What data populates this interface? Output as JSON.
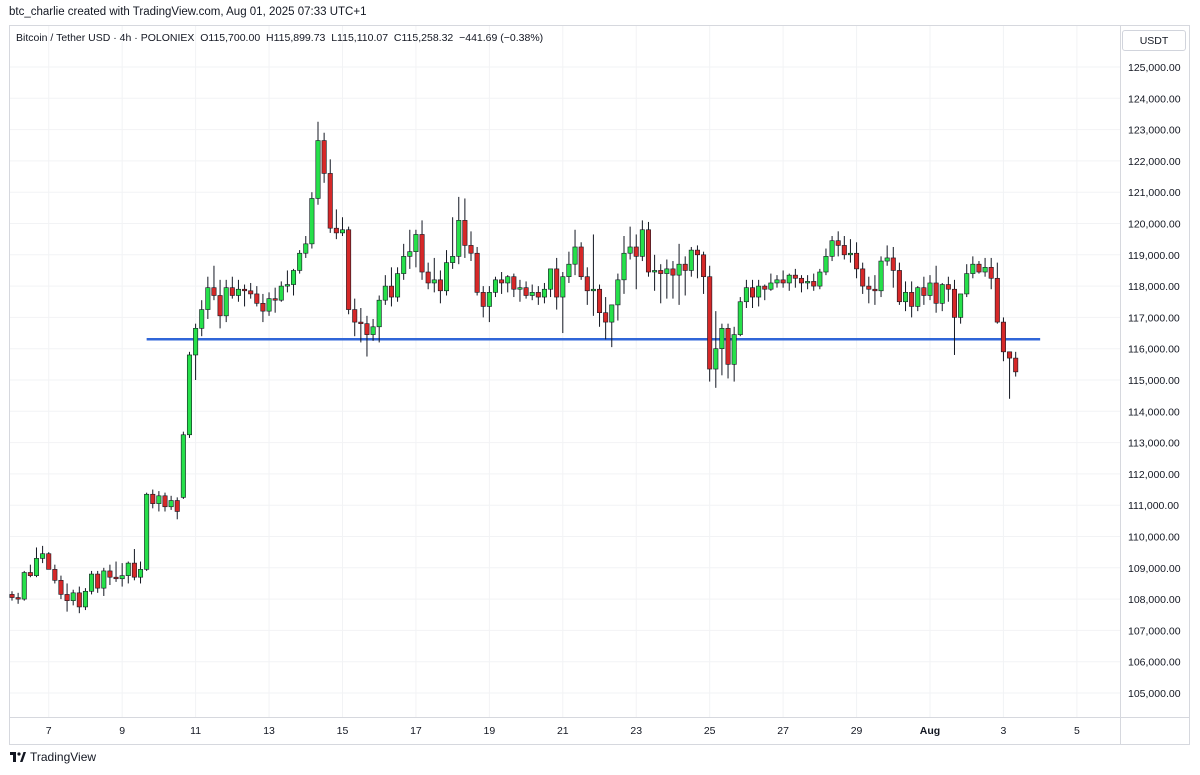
{
  "header": {
    "text": "btc_charlie created with TradingView.com, Aug 01, 2025 07:33 UTC+1"
  },
  "symbol": {
    "name": "Bitcoin / Tether USD · 4h · POLONIEX",
    "open": "O115,700.00",
    "high": "H115,899.73",
    "low": "L115,110.07",
    "close": "C115,258.32",
    "change": "−441.69 (−0.38%)"
  },
  "currency": "USDT",
  "footer": {
    "brand": "TradingView"
  },
  "colors": {
    "up": "#26e04a",
    "down": "#d62828",
    "line": "#3066d8",
    "grid": "#f2f3f5"
  },
  "chart_data": {
    "type": "candlestick",
    "interval": "4h",
    "ylim": [
      104000,
      126000
    ],
    "y_ticks": [
      105000,
      106000,
      107000,
      108000,
      109000,
      110000,
      111000,
      112000,
      113000,
      114000,
      115000,
      116000,
      117000,
      118000,
      119000,
      120000,
      121000,
      122000,
      123000,
      124000,
      125000
    ],
    "y_tick_labels": [
      "105,000.00",
      "106,000.00",
      "107,000.00",
      "108,000.00",
      "109,000.00",
      "110,000.00",
      "111,000.00",
      "112,000.00",
      "113,000.00",
      "114,000.00",
      "115,000.00",
      "116,000.00",
      "117,000.00",
      "118,000.00",
      "119,000.00",
      "120,000.00",
      "121,000.00",
      "122,000.00",
      "123,000.00",
      "124,000.00",
      "125,000.00"
    ],
    "x_ticks": [
      {
        "pos": 6,
        "label": "7"
      },
      {
        "pos": 18,
        "label": "9"
      },
      {
        "pos": 30,
        "label": "11"
      },
      {
        "pos": 42,
        "label": "13"
      },
      {
        "pos": 54,
        "label": "15"
      },
      {
        "pos": 66,
        "label": "17"
      },
      {
        "pos": 78,
        "label": "19"
      },
      {
        "pos": 90,
        "label": "21"
      },
      {
        "pos": 102,
        "label": "23"
      },
      {
        "pos": 114,
        "label": "25"
      },
      {
        "pos": 126,
        "label": "27"
      },
      {
        "pos": 138,
        "label": "29"
      },
      {
        "pos": 150,
        "label": "Aug"
      },
      {
        "pos": 162,
        "label": "3"
      },
      {
        "pos": 174,
        "label": "5"
      }
    ],
    "horizontal_line": {
      "value": 116300,
      "from": 22,
      "to": 168
    },
    "candles": [
      {
        "o": 108150,
        "h": 108250,
        "l": 107950,
        "c": 108050
      },
      {
        "o": 108050,
        "h": 108200,
        "l": 107850,
        "c": 108000
      },
      {
        "o": 108000,
        "h": 108900,
        "l": 107950,
        "c": 108850
      },
      {
        "o": 108850,
        "h": 109100,
        "l": 108700,
        "c": 108750
      },
      {
        "o": 108750,
        "h": 109650,
        "l": 108700,
        "c": 109300
      },
      {
        "o": 109300,
        "h": 109700,
        "l": 109150,
        "c": 109450
      },
      {
        "o": 109450,
        "h": 109500,
        "l": 108950,
        "c": 108950
      },
      {
        "o": 108950,
        "h": 109100,
        "l": 108500,
        "c": 108600
      },
      {
        "o": 108600,
        "h": 108750,
        "l": 108000,
        "c": 108150
      },
      {
        "o": 108150,
        "h": 108500,
        "l": 107600,
        "c": 107950
      },
      {
        "o": 107950,
        "h": 108300,
        "l": 107800,
        "c": 108200
      },
      {
        "o": 108200,
        "h": 108400,
        "l": 107550,
        "c": 107750
      },
      {
        "o": 107750,
        "h": 108350,
        "l": 107650,
        "c": 108250
      },
      {
        "o": 108250,
        "h": 108900,
        "l": 108150,
        "c": 108800
      },
      {
        "o": 108800,
        "h": 108900,
        "l": 108200,
        "c": 108350
      },
      {
        "o": 108350,
        "h": 109000,
        "l": 108100,
        "c": 108900
      },
      {
        "o": 108900,
        "h": 109100,
        "l": 108450,
        "c": 108700
      },
      {
        "o": 108700,
        "h": 109200,
        "l": 108550,
        "c": 108650
      },
      {
        "o": 108650,
        "h": 109150,
        "l": 108400,
        "c": 108750
      },
      {
        "o": 108750,
        "h": 109200,
        "l": 108500,
        "c": 109150
      },
      {
        "o": 109150,
        "h": 109600,
        "l": 108600,
        "c": 108700
      },
      {
        "o": 108700,
        "h": 109200,
        "l": 108500,
        "c": 108950
      },
      {
        "o": 108950,
        "h": 111400,
        "l": 108900,
        "c": 111350
      },
      {
        "o": 111350,
        "h": 111500,
        "l": 110900,
        "c": 111050
      },
      {
        "o": 111050,
        "h": 111450,
        "l": 110800,
        "c": 111300
      },
      {
        "o": 111300,
        "h": 111400,
        "l": 110800,
        "c": 110950
      },
      {
        "o": 110950,
        "h": 111300,
        "l": 110850,
        "c": 111150
      },
      {
        "o": 111150,
        "h": 111250,
        "l": 110550,
        "c": 110800
      },
      {
        "o": 111250,
        "h": 113350,
        "l": 111200,
        "c": 113250
      },
      {
        "o": 113250,
        "h": 115900,
        "l": 113150,
        "c": 115800
      },
      {
        "o": 115800,
        "h": 116800,
        "l": 115000,
        "c": 116650
      },
      {
        "o": 116650,
        "h": 117550,
        "l": 116400,
        "c": 117250
      },
      {
        "o": 117250,
        "h": 118300,
        "l": 116950,
        "c": 117950
      },
      {
        "o": 117950,
        "h": 118650,
        "l": 117550,
        "c": 117700
      },
      {
        "o": 117700,
        "h": 118200,
        "l": 116650,
        "c": 117050
      },
      {
        "o": 117050,
        "h": 118200,
        "l": 116850,
        "c": 117950
      },
      {
        "o": 117950,
        "h": 118300,
        "l": 117600,
        "c": 117700
      },
      {
        "o": 117700,
        "h": 118200,
        "l": 117500,
        "c": 117900
      },
      {
        "o": 117900,
        "h": 118050,
        "l": 117350,
        "c": 117850
      },
      {
        "o": 117850,
        "h": 118100,
        "l": 117600,
        "c": 117750
      },
      {
        "o": 117750,
        "h": 118000,
        "l": 117350,
        "c": 117450
      },
      {
        "o": 117450,
        "h": 117750,
        "l": 116850,
        "c": 117200
      },
      {
        "o": 117200,
        "h": 117800,
        "l": 117050,
        "c": 117600
      },
      {
        "o": 117600,
        "h": 117950,
        "l": 117150,
        "c": 117550
      },
      {
        "o": 117550,
        "h": 118150,
        "l": 117500,
        "c": 118000
      },
      {
        "o": 118000,
        "h": 118500,
        "l": 117800,
        "c": 118050
      },
      {
        "o": 118050,
        "h": 118550,
        "l": 117700,
        "c": 118500
      },
      {
        "o": 118500,
        "h": 119150,
        "l": 118400,
        "c": 119050
      },
      {
        "o": 119050,
        "h": 119600,
        "l": 118900,
        "c": 119350
      },
      {
        "o": 119350,
        "h": 121000,
        "l": 119200,
        "c": 120800
      },
      {
        "o": 120800,
        "h": 123250,
        "l": 120600,
        "c": 122650
      },
      {
        "o": 122650,
        "h": 122900,
        "l": 121300,
        "c": 121600
      },
      {
        "o": 121600,
        "h": 122050,
        "l": 119700,
        "c": 119850
      },
      {
        "o": 119850,
        "h": 120450,
        "l": 119500,
        "c": 119700
      },
      {
        "o": 119700,
        "h": 120200,
        "l": 119600,
        "c": 119800
      },
      {
        "o": 119800,
        "h": 119900,
        "l": 117100,
        "c": 117250
      },
      {
        "o": 117250,
        "h": 117600,
        "l": 116400,
        "c": 116850
      },
      {
        "o": 116850,
        "h": 117300,
        "l": 116200,
        "c": 116800
      },
      {
        "o": 116800,
        "h": 117050,
        "l": 115750,
        "c": 116450
      },
      {
        "o": 116450,
        "h": 116950,
        "l": 116250,
        "c": 116700
      },
      {
        "o": 116700,
        "h": 117700,
        "l": 116200,
        "c": 117550
      },
      {
        "o": 117550,
        "h": 118350,
        "l": 117400,
        "c": 118000
      },
      {
        "o": 118000,
        "h": 118600,
        "l": 117350,
        "c": 117650
      },
      {
        "o": 117650,
        "h": 118600,
        "l": 117500,
        "c": 118400
      },
      {
        "o": 118400,
        "h": 119350,
        "l": 118200,
        "c": 118950
      },
      {
        "o": 118950,
        "h": 119800,
        "l": 118550,
        "c": 119100
      },
      {
        "o": 119100,
        "h": 119800,
        "l": 118600,
        "c": 119650
      },
      {
        "o": 119650,
        "h": 120100,
        "l": 118200,
        "c": 118450
      },
      {
        "o": 118450,
        "h": 118750,
        "l": 117900,
        "c": 118100
      },
      {
        "o": 118100,
        "h": 118900,
        "l": 117800,
        "c": 118200
      },
      {
        "o": 118200,
        "h": 118500,
        "l": 117450,
        "c": 117850
      },
      {
        "o": 117850,
        "h": 119150,
        "l": 117700,
        "c": 118750
      },
      {
        "o": 118750,
        "h": 120200,
        "l": 118550,
        "c": 118950
      },
      {
        "o": 118950,
        "h": 120850,
        "l": 118700,
        "c": 120100
      },
      {
        "o": 120100,
        "h": 120800,
        "l": 118900,
        "c": 119300
      },
      {
        "o": 119300,
        "h": 119750,
        "l": 118800,
        "c": 119050
      },
      {
        "o": 119050,
        "h": 119250,
        "l": 117700,
        "c": 117800
      },
      {
        "o": 117800,
        "h": 118000,
        "l": 117000,
        "c": 117350
      },
      {
        "o": 117350,
        "h": 118000,
        "l": 116850,
        "c": 117800
      },
      {
        "o": 117800,
        "h": 118300,
        "l": 117650,
        "c": 118200
      },
      {
        "o": 118200,
        "h": 118450,
        "l": 117750,
        "c": 118100
      },
      {
        "o": 118100,
        "h": 118350,
        "l": 117800,
        "c": 118300
      },
      {
        "o": 118300,
        "h": 118400,
        "l": 117650,
        "c": 117900
      },
      {
        "o": 117900,
        "h": 118200,
        "l": 117500,
        "c": 117950
      },
      {
        "o": 117950,
        "h": 118150,
        "l": 117600,
        "c": 117700
      },
      {
        "o": 117700,
        "h": 118050,
        "l": 117550,
        "c": 117800
      },
      {
        "o": 117800,
        "h": 118000,
        "l": 117400,
        "c": 117650
      },
      {
        "o": 117650,
        "h": 118100,
        "l": 117450,
        "c": 117900
      },
      {
        "o": 117900,
        "h": 118500,
        "l": 117650,
        "c": 118550
      },
      {
        "o": 118550,
        "h": 118900,
        "l": 117250,
        "c": 117650
      },
      {
        "o": 117650,
        "h": 118450,
        "l": 116500,
        "c": 118300
      },
      {
        "o": 118300,
        "h": 119100,
        "l": 118100,
        "c": 118700
      },
      {
        "o": 118700,
        "h": 119800,
        "l": 118350,
        "c": 119250
      },
      {
        "o": 119250,
        "h": 119400,
        "l": 118200,
        "c": 118300
      },
      {
        "o": 118300,
        "h": 118600,
        "l": 117400,
        "c": 117850
      },
      {
        "o": 117850,
        "h": 119650,
        "l": 117050,
        "c": 117900
      },
      {
        "o": 117900,
        "h": 118050,
        "l": 116700,
        "c": 117150
      },
      {
        "o": 117150,
        "h": 117650,
        "l": 116300,
        "c": 116850
      },
      {
        "o": 116850,
        "h": 117400,
        "l": 116050,
        "c": 117400
      },
      {
        "o": 117400,
        "h": 118400,
        "l": 116900,
        "c": 118200
      },
      {
        "o": 118200,
        "h": 119600,
        "l": 117750,
        "c": 119050
      },
      {
        "o": 119050,
        "h": 119900,
        "l": 118850,
        "c": 119250
      },
      {
        "o": 119250,
        "h": 119650,
        "l": 117900,
        "c": 118950
      },
      {
        "o": 118950,
        "h": 120100,
        "l": 118800,
        "c": 119800
      },
      {
        "o": 119800,
        "h": 120050,
        "l": 118300,
        "c": 118450
      },
      {
        "o": 118450,
        "h": 119000,
        "l": 117850,
        "c": 118500
      },
      {
        "o": 118500,
        "h": 118700,
        "l": 117450,
        "c": 118400
      },
      {
        "o": 118400,
        "h": 118850,
        "l": 117600,
        "c": 118550
      },
      {
        "o": 118550,
        "h": 118800,
        "l": 117600,
        "c": 118350
      },
      {
        "o": 118350,
        "h": 119350,
        "l": 117400,
        "c": 118700
      },
      {
        "o": 118700,
        "h": 118950,
        "l": 117700,
        "c": 118500
      },
      {
        "o": 118500,
        "h": 119250,
        "l": 118300,
        "c": 119150
      },
      {
        "o": 119150,
        "h": 119300,
        "l": 118250,
        "c": 119000
      },
      {
        "o": 119000,
        "h": 119100,
        "l": 117750,
        "c": 118300
      },
      {
        "o": 118300,
        "h": 118650,
        "l": 114950,
        "c": 115350
      },
      {
        "o": 115350,
        "h": 117200,
        "l": 114750,
        "c": 116000
      },
      {
        "o": 116000,
        "h": 116800,
        "l": 115150,
        "c": 116650
      },
      {
        "o": 116650,
        "h": 116800,
        "l": 115050,
        "c": 115500
      },
      {
        "o": 115500,
        "h": 116700,
        "l": 114950,
        "c": 116450
      },
      {
        "o": 116450,
        "h": 117650,
        "l": 116400,
        "c": 117500
      },
      {
        "o": 117500,
        "h": 118200,
        "l": 117300,
        "c": 117950
      },
      {
        "o": 117950,
        "h": 118200,
        "l": 117300,
        "c": 117650
      },
      {
        "o": 117650,
        "h": 118200,
        "l": 117350,
        "c": 118000
      },
      {
        "o": 118000,
        "h": 118050,
        "l": 117550,
        "c": 117900
      },
      {
        "o": 117900,
        "h": 118400,
        "l": 117850,
        "c": 118100
      },
      {
        "o": 118100,
        "h": 118350,
        "l": 117950,
        "c": 118200
      },
      {
        "o": 118200,
        "h": 118500,
        "l": 117950,
        "c": 118100
      },
      {
        "o": 118100,
        "h": 118400,
        "l": 117850,
        "c": 118350
      },
      {
        "o": 118350,
        "h": 118550,
        "l": 117950,
        "c": 118250
      },
      {
        "o": 118250,
        "h": 118350,
        "l": 117800,
        "c": 118100
      },
      {
        "o": 118100,
        "h": 118350,
        "l": 117900,
        "c": 118150
      },
      {
        "o": 118150,
        "h": 118400,
        "l": 117850,
        "c": 118000
      },
      {
        "o": 118000,
        "h": 118550,
        "l": 117900,
        "c": 118450
      },
      {
        "o": 118450,
        "h": 119200,
        "l": 118350,
        "c": 118950
      },
      {
        "o": 118950,
        "h": 119600,
        "l": 118800,
        "c": 119450
      },
      {
        "o": 119450,
        "h": 119750,
        "l": 118950,
        "c": 119300
      },
      {
        "o": 119300,
        "h": 119600,
        "l": 118850,
        "c": 119000
      },
      {
        "o": 119000,
        "h": 119500,
        "l": 118750,
        "c": 119050
      },
      {
        "o": 119050,
        "h": 119400,
        "l": 118250,
        "c": 118550
      },
      {
        "o": 118550,
        "h": 118750,
        "l": 117750,
        "c": 118000
      },
      {
        "o": 118000,
        "h": 118300,
        "l": 117450,
        "c": 117900
      },
      {
        "o": 117900,
        "h": 118350,
        "l": 117400,
        "c": 117850
      },
      {
        "o": 117850,
        "h": 118950,
        "l": 117650,
        "c": 118800
      },
      {
        "o": 118800,
        "h": 119300,
        "l": 118650,
        "c": 118900
      },
      {
        "o": 118900,
        "h": 119250,
        "l": 117950,
        "c": 118500
      },
      {
        "o": 118500,
        "h": 118750,
        "l": 117400,
        "c": 117500
      },
      {
        "o": 117500,
        "h": 118150,
        "l": 117200,
        "c": 117800
      },
      {
        "o": 117800,
        "h": 118150,
        "l": 117000,
        "c": 117350
      },
      {
        "o": 117350,
        "h": 118000,
        "l": 117200,
        "c": 117950
      },
      {
        "o": 117950,
        "h": 118300,
        "l": 117400,
        "c": 117700
      },
      {
        "o": 117700,
        "h": 118350,
        "l": 117550,
        "c": 118100
      },
      {
        "o": 118100,
        "h": 118650,
        "l": 117150,
        "c": 117450
      },
      {
        "o": 117450,
        "h": 118100,
        "l": 117200,
        "c": 118050
      },
      {
        "o": 118050,
        "h": 118300,
        "l": 117500,
        "c": 117900
      },
      {
        "o": 117900,
        "h": 118200,
        "l": 115800,
        "c": 117000
      },
      {
        "o": 117000,
        "h": 117700,
        "l": 116800,
        "c": 117750
      },
      {
        "o": 117750,
        "h": 118700,
        "l": 117650,
        "c": 118400
      },
      {
        "o": 118400,
        "h": 118950,
        "l": 118250,
        "c": 118700
      },
      {
        "o": 118700,
        "h": 118800,
        "l": 118400,
        "c": 118450
      },
      {
        "o": 118450,
        "h": 118900,
        "l": 118300,
        "c": 118600
      },
      {
        "o": 118600,
        "h": 118900,
        "l": 117900,
        "c": 118250
      },
      {
        "o": 118250,
        "h": 118750,
        "l": 116800,
        "c": 116850
      },
      {
        "o": 116850,
        "h": 117000,
        "l": 115600,
        "c": 115900
      },
      {
        "o": 115900,
        "h": 115900,
        "l": 114400,
        "c": 115700
      },
      {
        "o": 115700,
        "h": 115900,
        "l": 115110,
        "c": 115260
      }
    ]
  }
}
